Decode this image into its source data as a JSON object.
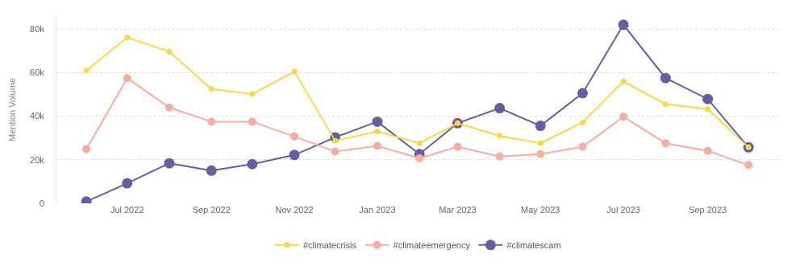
{
  "chart_data": {
    "type": "line",
    "ylabel": "Mention Volume",
    "x": [
      "2022-06",
      "2022-07",
      "2022-08",
      "2022-09",
      "2022-10",
      "2022-11",
      "2022-12",
      "2023-01",
      "2023-02",
      "2023-03",
      "2023-04",
      "2023-05",
      "2023-06",
      "2023-07",
      "2023-08",
      "2023-09",
      "2023-10"
    ],
    "series": [
      {
        "name": "#climatecrisis",
        "color": "#f9d943",
        "values": [
          61000,
          76200,
          69700,
          52500,
          50200,
          60500,
          28700,
          33000,
          27600,
          36800,
          31000,
          27600,
          37200,
          56000,
          45600,
          43300,
          25700
        ]
      },
      {
        "name": "#climateemergency",
        "color": "#f9ada0",
        "values": [
          24900,
          57500,
          44000,
          37500,
          37500,
          30700,
          23800,
          26400,
          20700,
          26000,
          21500,
          22600,
          26000,
          39800,
          27600,
          24100,
          17600
        ]
      },
      {
        "name": "#climatescam",
        "color": "#6a5c9e",
        "values": [
          800,
          9200,
          18400,
          15000,
          18000,
          22200,
          30300,
          37500,
          22600,
          36800,
          43700,
          35600,
          50600,
          82000,
          57500,
          47900,
          25700
        ]
      }
    ],
    "xlim": [
      "2022-05-10",
      "2023-10-24"
    ],
    "xticks": [
      {
        "value": "2022-07",
        "label": "Jul 2022"
      },
      {
        "value": "2022-09",
        "label": "Sep 2022"
      },
      {
        "value": "2022-11",
        "label": "Nov 2022"
      },
      {
        "value": "2023-01",
        "label": "Jan 2023"
      },
      {
        "value": "2023-03",
        "label": "Mar 2023"
      },
      {
        "value": "2023-05",
        "label": "May 2023"
      },
      {
        "value": "2023-07",
        "label": "Jul 2023"
      },
      {
        "value": "2023-09",
        "label": "Sep 2023"
      }
    ],
    "ylim": [
      0,
      86000
    ],
    "yticks": [
      0,
      {
        "value": 20000,
        "label": "20k"
      },
      {
        "value": 40000,
        "label": "40k"
      },
      {
        "value": 60000,
        "label": "60k"
      },
      {
        "value": 80000,
        "label": "80k"
      }
    ],
    "grid": "y",
    "legend": "bottom",
    "marker": "circle",
    "line_style": "solid"
  }
}
